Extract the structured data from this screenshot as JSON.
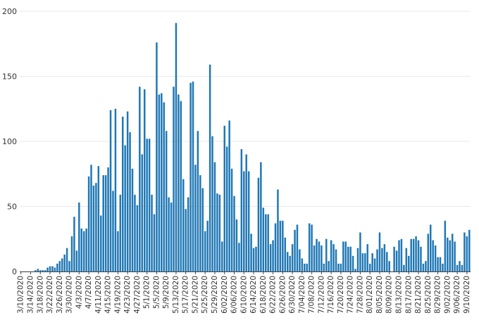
{
  "chart_data": {
    "type": "bar",
    "title": "",
    "xlabel": "",
    "ylabel": "",
    "start_date": "3/10/2020",
    "x_tick_every_days": 4,
    "x_tick_labels": [
      "3/10/2020",
      "3/14/2020",
      "3/18/2020",
      "3/22/2020",
      "3/26/2020",
      "3/30/2020",
      "4/3/2020",
      "4/7/2020",
      "4/11/2020",
      "4/15/2020",
      "4/19/2020",
      "4/23/2020",
      "4/27/2020",
      "5/1/2020",
      "5/5/2020",
      "5/9/2020",
      "5/13/2020",
      "5/17/2020",
      "5/21/2020",
      "5/25/2020",
      "5/29/2020",
      "6/02/2020",
      "6/06/2020",
      "6/10/2020",
      "6/14/2020",
      "6/18/2020",
      "6/22/2020",
      "6/26/2020",
      "6/30/2020",
      "7/04/2020",
      "7/08/2020",
      "7/12/2020",
      "7/16/2020",
      "7/20/2020",
      "7/24/2020",
      "7/28/2020",
      "8/01/2020",
      "8/05/2020",
      "8/09/2020",
      "8/13/2020",
      "8/17/2020",
      "8/21/2020",
      "8/25/2020",
      "8/29/2020",
      "9/02/2020",
      "9/06/2020",
      "9/10/2020"
    ],
    "y_ticks": [
      0,
      50,
      100,
      150,
      200
    ],
    "ylim": [
      0,
      200
    ],
    "grid": true,
    "bar_color": "#1f77b4",
    "values": [
      0,
      0,
      0,
      0,
      0,
      0,
      1,
      2,
      1,
      1,
      1,
      3,
      4,
      4,
      3,
      6,
      8,
      10,
      13,
      18,
      8,
      27,
      42,
      16,
      53,
      33,
      31,
      33,
      73,
      82,
      66,
      68,
      81,
      43,
      74,
      74,
      80,
      124,
      62,
      125,
      31,
      59,
      119,
      97,
      123,
      107,
      79,
      59,
      51,
      142,
      90,
      140,
      102,
      102,
      59,
      44,
      176,
      136,
      137,
      130,
      108,
      57,
      53,
      142,
      191,
      136,
      131,
      71,
      48,
      57,
      145,
      146,
      82,
      108,
      74,
      64,
      31,
      39,
      159,
      104,
      84,
      60,
      59,
      23,
      112,
      96,
      116,
      79,
      58,
      40,
      22,
      94,
      77,
      90,
      77,
      29,
      18,
      19,
      72,
      84,
      49,
      44,
      44,
      21,
      24,
      37,
      63,
      39,
      39,
      26,
      15,
      12,
      21,
      32,
      36,
      17,
      10,
      6,
      6,
      37,
      36,
      20,
      25,
      23,
      20,
      6,
      25,
      8,
      24,
      21,
      17,
      6,
      6,
      23,
      23,
      19,
      19,
      12,
      2,
      18,
      30,
      14,
      14,
      21,
      6,
      14,
      10,
      17,
      30,
      18,
      21,
      15,
      8,
      0,
      19,
      16,
      24,
      25,
      5,
      18,
      12,
      25,
      25,
      27,
      24,
      19,
      6,
      8,
      29,
      36,
      24,
      20,
      11,
      11,
      6,
      39,
      26,
      24,
      29,
      23,
      5,
      8,
      5,
      30,
      27,
      32
    ]
  }
}
